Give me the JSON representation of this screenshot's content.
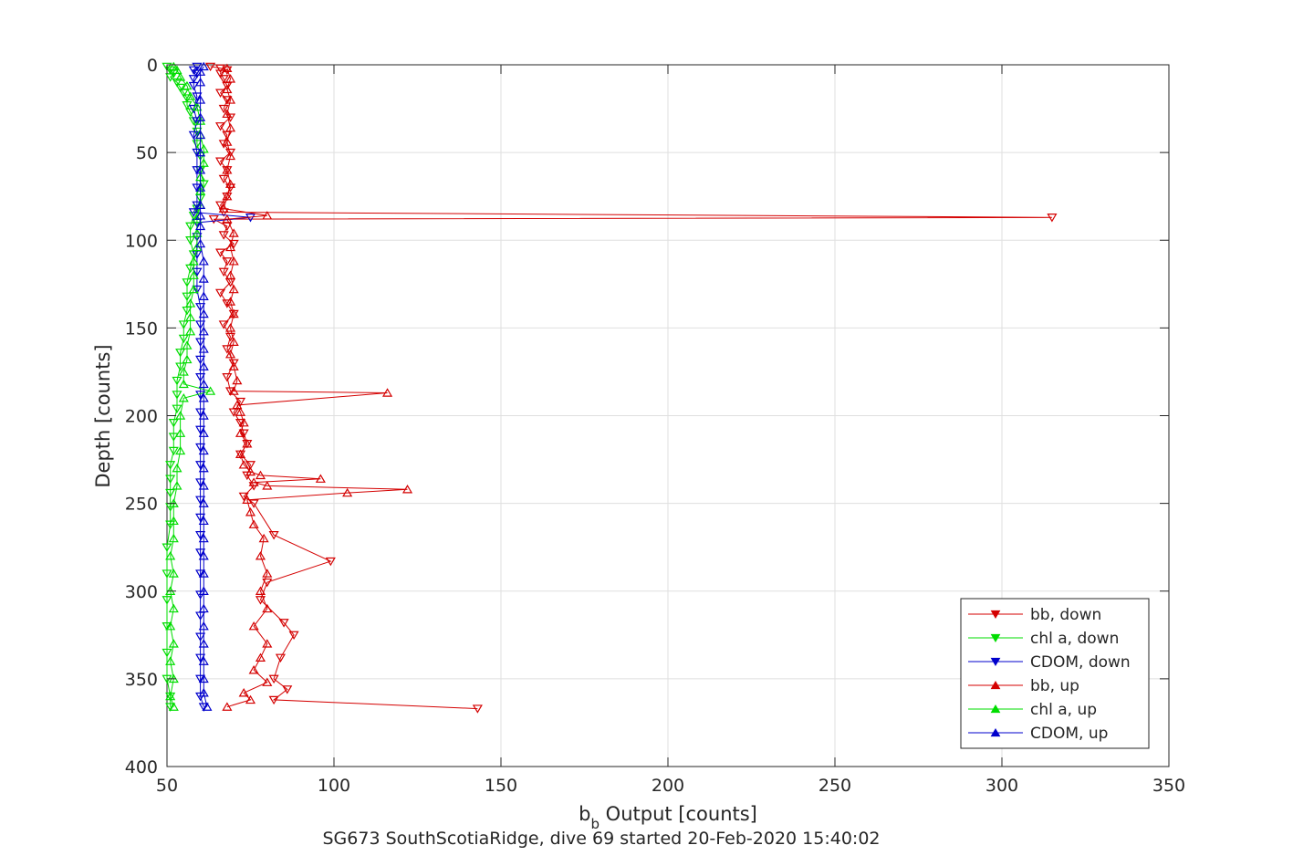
{
  "chart_data": {
    "type": "scatter",
    "title": "",
    "xlabel_main": "b",
    "xlabel_sub": "b",
    "xlabel_rest": " Output [counts]",
    "caption": "SG673 SouthScotiaRidge, dive 69 started 20-Feb-2020 15:40:02",
    "ylabel": "Depth [counts]",
    "xlim": [
      50,
      350
    ],
    "ylim": [
      0,
      400
    ],
    "y_reversed": true,
    "xticks": [
      50,
      100,
      150,
      200,
      250,
      300,
      350
    ],
    "yticks": [
      0,
      50,
      100,
      150,
      200,
      250,
      300,
      350,
      400
    ],
    "grid": true,
    "legend_position": "bottom-right",
    "series": [
      {
        "name": "bb, down",
        "color": "#d40000",
        "marker": "triangle-down",
        "line": true,
        "points": [
          [
            63,
            1
          ],
          [
            66,
            2
          ],
          [
            68,
            3
          ],
          [
            66,
            5
          ],
          [
            67,
            8
          ],
          [
            68,
            12
          ],
          [
            66,
            16
          ],
          [
            68,
            20
          ],
          [
            67,
            25
          ],
          [
            69,
            30
          ],
          [
            66,
            35
          ],
          [
            68,
            40
          ],
          [
            67,
            45
          ],
          [
            69,
            50
          ],
          [
            66,
            55
          ],
          [
            68,
            60
          ],
          [
            67,
            65
          ],
          [
            69,
            70
          ],
          [
            68,
            75
          ],
          [
            66,
            80
          ],
          [
            67,
            84
          ],
          [
            315,
            87
          ],
          [
            64,
            88
          ],
          [
            68,
            92
          ],
          [
            67,
            97
          ],
          [
            70,
            102
          ],
          [
            66,
            107
          ],
          [
            68,
            112
          ],
          [
            67,
            118
          ],
          [
            69,
            124
          ],
          [
            66,
            130
          ],
          [
            68,
            136
          ],
          [
            70,
            142
          ],
          [
            67,
            148
          ],
          [
            69,
            155
          ],
          [
            68,
            162
          ],
          [
            70,
            170
          ],
          [
            68,
            178
          ],
          [
            69,
            186
          ],
          [
            72,
            192
          ],
          [
            70,
            198
          ],
          [
            72,
            204
          ],
          [
            73,
            210
          ],
          [
            74,
            216
          ],
          [
            72,
            222
          ],
          [
            75,
            228
          ],
          [
            74,
            234
          ],
          [
            76,
            240
          ],
          [
            73,
            246
          ],
          [
            76,
            250
          ],
          [
            82,
            268
          ],
          [
            99,
            283
          ],
          [
            80,
            295
          ],
          [
            78,
            305
          ],
          [
            85,
            318
          ],
          [
            88,
            325
          ],
          [
            84,
            338
          ],
          [
            82,
            350
          ],
          [
            86,
            356
          ],
          [
            82,
            362
          ],
          [
            143,
            367
          ]
        ]
      },
      {
        "name": "chl a, down",
        "color": "#00dd00",
        "marker": "triangle-down",
        "line": true,
        "points": [
          [
            50,
            1
          ],
          [
            51,
            3
          ],
          [
            52,
            5
          ],
          [
            51,
            7
          ],
          [
            53,
            10
          ],
          [
            54,
            13
          ],
          [
            55,
            16
          ],
          [
            56,
            19
          ],
          [
            56,
            23
          ],
          [
            57,
            27
          ],
          [
            58,
            32
          ],
          [
            59,
            38
          ],
          [
            59,
            45
          ],
          [
            60,
            52
          ],
          [
            60,
            60
          ],
          [
            61,
            68
          ],
          [
            60,
            76
          ],
          [
            59,
            82
          ],
          [
            58,
            86
          ],
          [
            57,
            92
          ],
          [
            57,
            100
          ],
          [
            58,
            108
          ],
          [
            57,
            116
          ],
          [
            56,
            124
          ],
          [
            56,
            132
          ],
          [
            56,
            140
          ],
          [
            55,
            148
          ],
          [
            55,
            156
          ],
          [
            54,
            164
          ],
          [
            54,
            172
          ],
          [
            53,
            180
          ],
          [
            53,
            188
          ],
          [
            53,
            196
          ],
          [
            52,
            204
          ],
          [
            52,
            212
          ],
          [
            52,
            220
          ],
          [
            51,
            228
          ],
          [
            51,
            236
          ],
          [
            51,
            244
          ],
          [
            51,
            252
          ],
          [
            51,
            262
          ],
          [
            50,
            275
          ],
          [
            50,
            290
          ],
          [
            50,
            305
          ],
          [
            50,
            320
          ],
          [
            50,
            335
          ],
          [
            50,
            350
          ],
          [
            51,
            360
          ],
          [
            51,
            366
          ]
        ]
      },
      {
        "name": "CDOM, down",
        "color": "#0000cc",
        "marker": "triangle-down",
        "line": true,
        "points": [
          [
            59,
            1
          ],
          [
            58,
            3
          ],
          [
            59,
            5
          ],
          [
            58,
            8
          ],
          [
            58,
            12
          ],
          [
            59,
            18
          ],
          [
            58,
            25
          ],
          [
            59,
            32
          ],
          [
            58,
            40
          ],
          [
            59,
            50
          ],
          [
            59,
            60
          ],
          [
            59,
            70
          ],
          [
            59,
            80
          ],
          [
            58,
            84
          ],
          [
            75,
            87
          ],
          [
            59,
            90
          ],
          [
            59,
            98
          ],
          [
            59,
            108
          ],
          [
            59,
            118
          ],
          [
            59,
            128
          ],
          [
            60,
            138
          ],
          [
            60,
            148
          ],
          [
            60,
            158
          ],
          [
            60,
            168
          ],
          [
            60,
            178
          ],
          [
            60,
            188
          ],
          [
            60,
            198
          ],
          [
            60,
            208
          ],
          [
            60,
            218
          ],
          [
            60,
            228
          ],
          [
            60,
            238
          ],
          [
            60,
            248
          ],
          [
            60,
            258
          ],
          [
            60,
            268
          ],
          [
            60,
            278
          ],
          [
            60,
            290
          ],
          [
            60,
            302
          ],
          [
            60,
            314
          ],
          [
            60,
            326
          ],
          [
            60,
            338
          ],
          [
            60,
            350
          ],
          [
            60,
            360
          ],
          [
            61,
            366
          ]
        ]
      },
      {
        "name": "bb, up",
        "color": "#d40000",
        "marker": "triangle-up",
        "line": true,
        "points": [
          [
            68,
            366
          ],
          [
            75,
            362
          ],
          [
            73,
            358
          ],
          [
            80,
            352
          ],
          [
            76,
            345
          ],
          [
            78,
            338
          ],
          [
            80,
            330
          ],
          [
            76,
            320
          ],
          [
            80,
            310
          ],
          [
            78,
            300
          ],
          [
            80,
            290
          ],
          [
            78,
            280
          ],
          [
            79,
            270
          ],
          [
            76,
            262
          ],
          [
            75,
            255
          ],
          [
            74,
            248
          ],
          [
            104,
            244
          ],
          [
            122,
            242
          ],
          [
            80,
            240
          ],
          [
            76,
            238
          ],
          [
            96,
            236
          ],
          [
            78,
            234
          ],
          [
            75,
            232
          ],
          [
            73,
            228
          ],
          [
            72,
            222
          ],
          [
            74,
            216
          ],
          [
            72,
            210
          ],
          [
            73,
            204
          ],
          [
            72,
            198
          ],
          [
            71,
            194
          ],
          [
            116,
            187
          ],
          [
            70,
            186
          ],
          [
            71,
            180
          ],
          [
            70,
            172
          ],
          [
            69,
            165
          ],
          [
            70,
            158
          ],
          [
            69,
            150
          ],
          [
            70,
            142
          ],
          [
            69,
            135
          ],
          [
            70,
            128
          ],
          [
            69,
            120
          ],
          [
            70,
            112
          ],
          [
            69,
            104
          ],
          [
            70,
            96
          ],
          [
            68,
            88
          ],
          [
            80,
            86
          ],
          [
            67,
            82
          ],
          [
            68,
            75
          ],
          [
            69,
            68
          ],
          [
            68,
            60
          ],
          [
            69,
            52
          ],
          [
            68,
            44
          ],
          [
            69,
            36
          ],
          [
            68,
            28
          ],
          [
            69,
            20
          ],
          [
            68,
            14
          ],
          [
            69,
            8
          ],
          [
            68,
            2
          ]
        ]
      },
      {
        "name": "chl a, up",
        "color": "#00dd00",
        "marker": "triangle-up",
        "line": true,
        "points": [
          [
            52,
            366
          ],
          [
            51,
            360
          ],
          [
            52,
            350
          ],
          [
            51,
            340
          ],
          [
            52,
            330
          ],
          [
            51,
            320
          ],
          [
            52,
            310
          ],
          [
            51,
            300
          ],
          [
            52,
            290
          ],
          [
            51,
            280
          ],
          [
            52,
            270
          ],
          [
            52,
            260
          ],
          [
            52,
            250
          ],
          [
            53,
            240
          ],
          [
            53,
            230
          ],
          [
            54,
            220
          ],
          [
            54,
            210
          ],
          [
            54,
            200
          ],
          [
            55,
            190
          ],
          [
            63,
            186
          ],
          [
            55,
            182
          ],
          [
            55,
            175
          ],
          [
            56,
            168
          ],
          [
            56,
            160
          ],
          [
            57,
            152
          ],
          [
            57,
            144
          ],
          [
            57,
            136
          ],
          [
            58,
            128
          ],
          [
            58,
            120
          ],
          [
            58,
            112
          ],
          [
            59,
            104
          ],
          [
            59,
            96
          ],
          [
            59,
            88
          ],
          [
            60,
            80
          ],
          [
            60,
            72
          ],
          [
            60,
            64
          ],
          [
            61,
            56
          ],
          [
            61,
            48
          ],
          [
            60,
            40
          ],
          [
            60,
            32
          ],
          [
            59,
            24
          ],
          [
            57,
            18
          ],
          [
            56,
            12
          ],
          [
            54,
            7
          ],
          [
            53,
            3
          ],
          [
            52,
            1
          ]
        ]
      },
      {
        "name": "CDOM, up",
        "color": "#0000cc",
        "marker": "triangle-up",
        "line": true,
        "points": [
          [
            62,
            366
          ],
          [
            61,
            358
          ],
          [
            61,
            350
          ],
          [
            61,
            340
          ],
          [
            61,
            330
          ],
          [
            61,
            320
          ],
          [
            61,
            310
          ],
          [
            61,
            300
          ],
          [
            61,
            290
          ],
          [
            61,
            280
          ],
          [
            61,
            270
          ],
          [
            61,
            260
          ],
          [
            61,
            250
          ],
          [
            61,
            240
          ],
          [
            61,
            230
          ],
          [
            61,
            220
          ],
          [
            61,
            210
          ],
          [
            61,
            200
          ],
          [
            61,
            190
          ],
          [
            61,
            182
          ],
          [
            61,
            172
          ],
          [
            61,
            162
          ],
          [
            61,
            152
          ],
          [
            61,
            142
          ],
          [
            61,
            132
          ],
          [
            61,
            122
          ],
          [
            61,
            112
          ],
          [
            60,
            102
          ],
          [
            60,
            92
          ],
          [
            60,
            86
          ],
          [
            60,
            80
          ],
          [
            60,
            70
          ],
          [
            60,
            60
          ],
          [
            60,
            50
          ],
          [
            60,
            40
          ],
          [
            60,
            30
          ],
          [
            60,
            20
          ],
          [
            60,
            10
          ],
          [
            60,
            4
          ],
          [
            61,
            1
          ]
        ]
      }
    ]
  }
}
